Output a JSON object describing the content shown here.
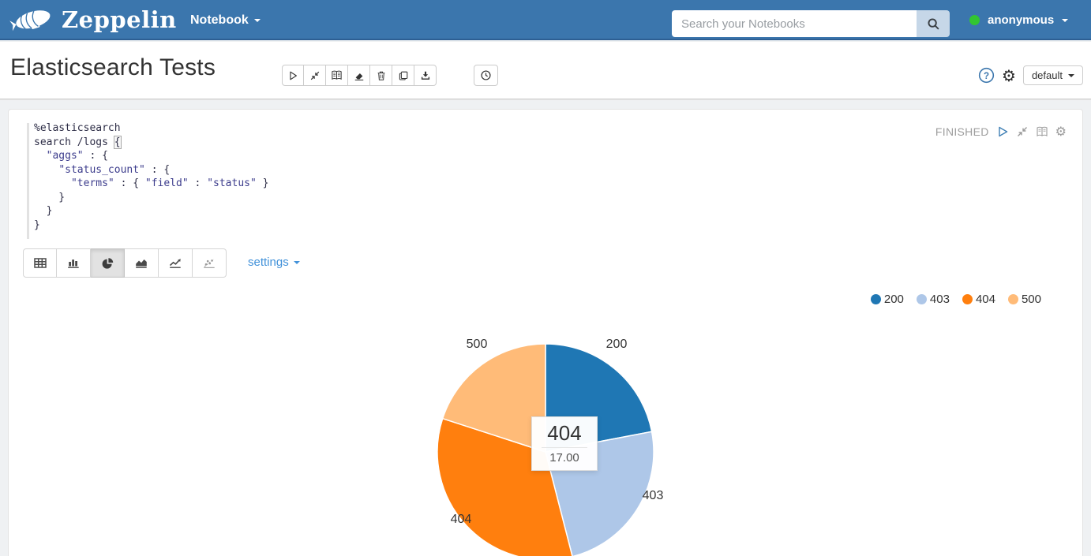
{
  "navbar": {
    "brand": "Zeppelin",
    "notebook_menu": "Notebook",
    "search_placeholder": "Search your Notebooks",
    "search_value": "",
    "user": "anonymous"
  },
  "note": {
    "title": "Elasticsearch Tests",
    "interpreter_binding": "default",
    "toolbar_buttons": [
      "run-all",
      "show-hide-code",
      "show-hide-output",
      "clear-output",
      "remove-note",
      "clone-note",
      "export-note"
    ],
    "scheduler_button": "cron-scheduler"
  },
  "paragraph": {
    "status": "FINISHED",
    "code": "%elasticsearch\nsearch /logs {\n  \"aggs\" : {\n    \"status_count\" : {\n      \"terms\" : { \"field\" : \"status\" }\n    }\n  }\n}",
    "display_tabs": [
      "table",
      "bar-chart",
      "pie-chart",
      "area-chart",
      "line-chart",
      "scatter-chart"
    ],
    "active_tab": "pie-chart",
    "settings_label": "settings"
  },
  "chart_data": {
    "type": "pie",
    "categories": [
      "200",
      "403",
      "404",
      "500"
    ],
    "values": [
      11,
      12,
      17,
      10
    ],
    "colors": [
      "#1f77b4",
      "#aec7e8",
      "#ff7f0e",
      "#ffbb78"
    ],
    "legend": {
      "position": "top-right",
      "entries": [
        "200",
        "403",
        "404",
        "500"
      ]
    },
    "tooltip": {
      "label": "404",
      "value": "17.00"
    },
    "slice_labels_shown": true
  },
  "colors": {
    "navbar_bg": "#3b76ad",
    "link_blue": "#4191d9",
    "status_green_dot": "#32c532",
    "status_text": "#9e9e9e"
  }
}
